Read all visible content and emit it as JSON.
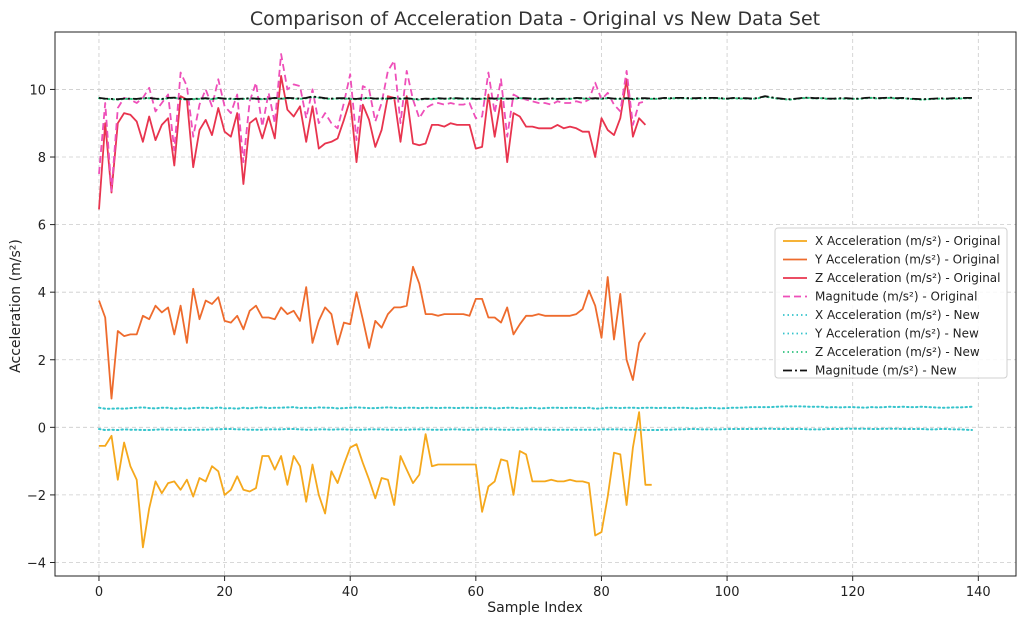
{
  "chart_data": {
    "type": "line",
    "title": "Comparison of Acceleration Data - Original vs New Data Set",
    "xlabel": "Sample Index",
    "ylabel": "Acceleration (m/s²)",
    "xlim": [
      -7,
      146
    ],
    "ylim": [
      -4.4,
      11.7
    ],
    "xticks": [
      0,
      20,
      40,
      60,
      80,
      100,
      120,
      140
    ],
    "yticks": [
      -4,
      -2,
      0,
      2,
      4,
      6,
      8,
      10
    ],
    "grid": true,
    "legend_position": "center-right",
    "series": [
      {
        "name": "X Acceleration (m/s²) - Original",
        "color": "#f5a81c",
        "style": "solid",
        "x_start": 0,
        "values": [
          -0.55,
          -0.55,
          -0.25,
          -1.55,
          -0.45,
          -1.15,
          -1.55,
          -3.55,
          -2.4,
          -1.6,
          -1.95,
          -1.65,
          -1.6,
          -1.85,
          -1.55,
          -2.05,
          -1.5,
          -1.6,
          -1.15,
          -1.3,
          -2.0,
          -1.85,
          -1.45,
          -1.85,
          -1.9,
          -1.8,
          -0.85,
          -0.85,
          -1.25,
          -0.85,
          -1.7,
          -0.85,
          -1.15,
          -2.2,
          -1.1,
          -2.0,
          -2.55,
          -1.3,
          -1.65,
          -1.1,
          -0.6,
          -0.5,
          -1.05,
          -1.55,
          -2.1,
          -1.5,
          -1.55,
          -2.3,
          -0.85,
          -1.25,
          -1.65,
          -1.4,
          -0.2,
          -1.15,
          -1.1,
          -1.1,
          -1.1,
          -1.1,
          -1.1,
          -1.1,
          -1.1,
          -2.5,
          -1.75,
          -1.6,
          -0.95,
          -1.0,
          -2.0,
          -0.7,
          -0.8,
          -1.6,
          -1.6,
          -1.6,
          -1.55,
          -1.6,
          -1.6,
          -1.55,
          -1.6,
          -1.6,
          -1.65,
          -3.2,
          -3.1,
          -2.05,
          -0.75,
          -0.8,
          -2.3,
          -0.6,
          0.45,
          -1.7,
          -1.7
        ]
      },
      {
        "name": "Y Acceleration (m/s²) - Original",
        "color": "#ee6b2d",
        "style": "solid",
        "x_start": 0,
        "values": [
          3.75,
          3.25,
          0.85,
          2.85,
          2.7,
          2.75,
          2.75,
          3.3,
          3.2,
          3.6,
          3.4,
          3.55,
          2.75,
          3.6,
          2.5,
          4.1,
          3.2,
          3.75,
          3.65,
          3.85,
          3.15,
          3.1,
          3.3,
          2.9,
          3.45,
          3.6,
          3.25,
          3.25,
          3.2,
          3.55,
          3.35,
          3.45,
          3.15,
          4.15,
          2.5,
          3.15,
          3.55,
          3.35,
          2.45,
          3.1,
          3.05,
          4.0,
          3.2,
          2.35,
          3.15,
          2.95,
          3.35,
          3.55,
          3.55,
          3.6,
          4.75,
          4.25,
          3.35,
          3.35,
          3.3,
          3.35,
          3.35,
          3.35,
          3.35,
          3.3,
          3.8,
          3.8,
          3.25,
          3.25,
          3.1,
          3.55,
          2.75,
          3.05,
          3.3,
          3.3,
          3.35,
          3.3,
          3.3,
          3.3,
          3.3,
          3.3,
          3.35,
          3.5,
          4.05,
          3.6,
          2.65,
          4.45,
          2.6,
          3.95,
          2.0,
          1.4,
          2.5,
          2.8
        ]
      },
      {
        "name": "Z Acceleration (m/s²) - Original",
        "color": "#e8344e",
        "style": "solid",
        "x_start": 0,
        "values": [
          6.45,
          9.0,
          6.95,
          9.0,
          9.3,
          9.25,
          9.05,
          8.45,
          9.2,
          8.5,
          8.95,
          9.15,
          7.75,
          9.8,
          9.7,
          7.7,
          8.8,
          9.1,
          8.65,
          9.45,
          8.75,
          8.6,
          9.3,
          7.2,
          9.0,
          9.15,
          8.55,
          9.2,
          8.55,
          10.4,
          9.4,
          9.2,
          9.5,
          8.45,
          9.5,
          8.25,
          8.4,
          8.45,
          8.55,
          9.1,
          9.7,
          7.85,
          9.55,
          9.1,
          8.3,
          8.8,
          9.8,
          9.75,
          8.45,
          9.8,
          8.4,
          8.35,
          8.4,
          8.95,
          8.95,
          8.9,
          9.0,
          8.95,
          8.95,
          8.95,
          8.25,
          8.3,
          9.85,
          8.6,
          9.7,
          7.85,
          9.3,
          9.2,
          8.9,
          8.9,
          8.85,
          8.85,
          8.85,
          8.95,
          8.85,
          8.9,
          8.85,
          8.75,
          8.75,
          8.0,
          9.15,
          8.8,
          8.65,
          9.15,
          10.3,
          8.6,
          9.15,
          8.95
        ]
      },
      {
        "name": "Magnitude (m/s²) - Original",
        "color": "#ee4fb9",
        "style": "dashed",
        "x_start": 0,
        "values": [
          7.5,
          9.6,
          7.0,
          9.45,
          9.75,
          9.7,
          9.6,
          9.75,
          10.05,
          9.35,
          9.6,
          9.85,
          8.2,
          10.5,
          10.1,
          8.6,
          9.55,
          10.0,
          9.5,
          10.3,
          9.5,
          9.3,
          9.85,
          7.85,
          9.65,
          10.2,
          8.9,
          9.9,
          9.0,
          11.05,
          10.0,
          10.15,
          10.1,
          9.15,
          10.0,
          9.0,
          9.3,
          9.0,
          8.85,
          9.6,
          10.45,
          8.5,
          10.1,
          10.0,
          9.05,
          9.6,
          10.55,
          10.85,
          9.0,
          10.55,
          9.7,
          9.15,
          9.45,
          9.55,
          9.6,
          9.55,
          9.6,
          9.55,
          9.55,
          9.6,
          9.15,
          9.2,
          10.5,
          9.3,
          10.3,
          8.6,
          9.85,
          9.75,
          9.7,
          9.65,
          9.6,
          9.6,
          9.55,
          9.65,
          9.6,
          9.6,
          9.65,
          9.6,
          9.7,
          10.2,
          9.7,
          9.9,
          9.55,
          9.35,
          10.55,
          8.95,
          9.6,
          9.65
        ]
      },
      {
        "name": "X Acceleration (m/s²) - New",
        "color": "#36c4cc",
        "style": "dotted",
        "x_start": 0,
        "values": [
          0.58,
          0.55,
          0.55,
          0.56,
          0.55,
          0.57,
          0.58,
          0.59,
          0.57,
          0.56,
          0.58,
          0.58,
          0.55,
          0.57,
          0.55,
          0.57,
          0.58,
          0.58,
          0.56,
          0.59,
          0.56,
          0.57,
          0.55,
          0.58,
          0.56,
          0.58,
          0.59,
          0.57,
          0.58,
          0.58,
          0.59,
          0.6,
          0.57,
          0.58,
          0.57,
          0.59,
          0.58,
          0.58,
          0.56,
          0.57,
          0.58,
          0.59,
          0.58,
          0.57,
          0.57,
          0.58,
          0.59,
          0.58,
          0.57,
          0.58,
          0.58,
          0.57,
          0.58,
          0.58,
          0.57,
          0.58,
          0.58,
          0.57,
          0.58,
          0.58,
          0.57,
          0.58,
          0.58,
          0.56,
          0.57,
          0.58,
          0.58,
          0.56,
          0.57,
          0.58,
          0.56,
          0.57,
          0.58,
          0.58,
          0.57,
          0.58,
          0.58,
          0.57,
          0.58,
          0.55,
          0.56,
          0.58,
          0.58,
          0.57,
          0.58,
          0.58,
          0.57,
          0.58,
          0.58,
          0.57,
          0.58,
          0.57,
          0.58,
          0.58,
          0.57,
          0.56,
          0.57,
          0.58,
          0.57,
          0.56,
          0.57,
          0.58,
          0.58,
          0.59,
          0.6,
          0.6,
          0.6,
          0.6,
          0.61,
          0.62,
          0.62,
          0.62,
          0.62,
          0.61,
          0.61,
          0.61,
          0.59,
          0.6,
          0.59,
          0.6,
          0.6,
          0.59,
          0.58,
          0.6,
          0.59,
          0.6,
          0.61,
          0.6,
          0.61,
          0.6,
          0.6,
          0.61,
          0.6,
          0.59,
          0.58,
          0.58,
          0.59,
          0.59,
          0.6,
          0.61
        ]
      },
      {
        "name": "Y Acceleration (m/s²) - New",
        "color": "#36c4cc",
        "style": "dotted",
        "x_start": 0,
        "values": [
          -0.05,
          -0.08,
          -0.07,
          -0.08,
          -0.06,
          -0.07,
          -0.07,
          -0.08,
          -0.08,
          -0.07,
          -0.06,
          -0.07,
          -0.07,
          -0.07,
          -0.08,
          -0.07,
          -0.07,
          -0.07,
          -0.06,
          -0.06,
          -0.05,
          -0.05,
          -0.06,
          -0.06,
          -0.07,
          -0.07,
          -0.07,
          -0.06,
          -0.06,
          -0.06,
          -0.05,
          -0.05,
          -0.06,
          -0.07,
          -0.07,
          -0.06,
          -0.06,
          -0.07,
          -0.06,
          -0.06,
          -0.07,
          -0.07,
          -0.07,
          -0.06,
          -0.06,
          -0.06,
          -0.07,
          -0.07,
          -0.07,
          -0.07,
          -0.06,
          -0.06,
          -0.06,
          -0.07,
          -0.07,
          -0.07,
          -0.06,
          -0.06,
          -0.07,
          -0.07,
          -0.07,
          -0.06,
          -0.06,
          -0.06,
          -0.07,
          -0.07,
          -0.07,
          -0.07,
          -0.06,
          -0.06,
          -0.06,
          -0.07,
          -0.07,
          -0.07,
          -0.07,
          -0.07,
          -0.07,
          -0.07,
          -0.07,
          -0.07,
          -0.06,
          -0.06,
          -0.06,
          -0.06,
          -0.07,
          -0.07,
          -0.07,
          -0.08,
          -0.08,
          -0.08,
          -0.07,
          -0.07,
          -0.06,
          -0.06,
          -0.05,
          -0.05,
          -0.06,
          -0.06,
          -0.06,
          -0.06,
          -0.05,
          -0.05,
          -0.05,
          -0.05,
          -0.05,
          -0.05,
          -0.04,
          -0.04,
          -0.05,
          -0.05,
          -0.05,
          -0.05,
          -0.05,
          -0.06,
          -0.06,
          -0.06,
          -0.05,
          -0.05,
          -0.05,
          -0.04,
          -0.04,
          -0.04,
          -0.04,
          -0.05,
          -0.05,
          -0.04,
          -0.04,
          -0.04,
          -0.05,
          -0.05,
          -0.05,
          -0.05,
          -0.06,
          -0.06,
          -0.05,
          -0.05,
          -0.06,
          -0.06,
          -0.07,
          -0.08
        ]
      },
      {
        "name": "Z Acceleration (m/s²) - New",
        "color": "#2ec27e",
        "style": "dotted",
        "x_start": 0,
        "values": [
          9.74,
          9.72,
          9.71,
          9.7,
          9.72,
          9.72,
          9.71,
          9.73,
          9.74,
          9.72,
          9.71,
          9.74,
          9.75,
          9.72,
          9.7,
          9.71,
          9.72,
          9.73,
          9.71,
          9.74,
          9.72,
          9.72,
          9.71,
          9.72,
          9.73,
          9.72,
          9.71,
          9.72,
          9.74,
          9.72,
          9.74,
          9.73,
          9.72,
          9.74,
          9.78,
          9.76,
          9.73,
          9.72,
          9.73,
          9.73,
          9.72,
          9.71,
          9.73,
          9.74,
          9.72,
          9.73,
          9.72,
          9.74,
          9.72,
          9.73,
          9.71,
          9.7,
          9.72,
          9.71,
          9.73,
          9.72,
          9.73,
          9.73,
          9.72,
          9.73,
          9.71,
          9.72,
          9.73,
          9.72,
          9.73,
          9.72,
          9.72,
          9.74,
          9.73,
          9.72,
          9.71,
          9.72,
          9.73,
          9.71,
          9.72,
          9.72,
          9.74,
          9.73,
          9.72,
          9.73,
          9.72,
          9.74,
          9.72,
          9.72,
          9.73,
          9.71,
          9.73,
          9.73,
          9.72,
          9.72,
          9.74,
          9.73,
          9.74,
          9.74,
          9.73,
          9.73,
          9.74,
          9.74,
          9.74,
          9.73,
          9.72,
          9.74,
          9.73,
          9.73,
          9.72,
          9.74,
          9.79,
          9.76,
          9.73,
          9.71,
          9.7,
          9.72,
          9.74,
          9.75,
          9.73,
          9.74,
          9.72,
          9.72,
          9.73,
          9.73,
          9.72,
          9.72,
          9.74,
          9.75,
          9.73,
          9.74,
          9.75,
          9.73,
          9.74,
          9.72,
          9.71,
          9.7,
          9.71,
          9.72,
          9.73,
          9.72,
          9.73,
          9.73,
          9.74,
          9.74
        ]
      },
      {
        "name": "Magnitude (m/s²) - New",
        "color": "#111111",
        "style": "dashdot",
        "x_start": 0,
        "values": [
          9.75,
          9.73,
          9.72,
          9.71,
          9.73,
          9.73,
          9.72,
          9.74,
          9.75,
          9.73,
          9.72,
          9.75,
          9.76,
          9.73,
          9.71,
          9.72,
          9.73,
          9.74,
          9.72,
          9.75,
          9.73,
          9.73,
          9.72,
          9.73,
          9.74,
          9.73,
          9.72,
          9.73,
          9.75,
          9.73,
          9.75,
          9.74,
          9.73,
          9.75,
          9.79,
          9.77,
          9.74,
          9.73,
          9.74,
          9.74,
          9.73,
          9.72,
          9.74,
          9.75,
          9.73,
          9.74,
          9.73,
          9.75,
          9.73,
          9.74,
          9.72,
          9.71,
          9.73,
          9.72,
          9.74,
          9.73,
          9.74,
          9.74,
          9.73,
          9.74,
          9.72,
          9.73,
          9.74,
          9.73,
          9.74,
          9.73,
          9.73,
          9.75,
          9.74,
          9.73,
          9.72,
          9.73,
          9.74,
          9.72,
          9.73,
          9.73,
          9.75,
          9.74,
          9.73,
          9.74,
          9.73,
          9.75,
          9.73,
          9.73,
          9.74,
          9.72,
          9.74,
          9.74,
          9.73,
          9.73,
          9.75,
          9.74,
          9.75,
          9.75,
          9.74,
          9.74,
          9.75,
          9.75,
          9.75,
          9.74,
          9.73,
          9.75,
          9.74,
          9.74,
          9.73,
          9.75,
          9.8,
          9.77,
          9.74,
          9.72,
          9.71,
          9.73,
          9.75,
          9.76,
          9.74,
          9.75,
          9.73,
          9.73,
          9.74,
          9.74,
          9.73,
          9.73,
          9.75,
          9.76,
          9.74,
          9.75,
          9.76,
          9.74,
          9.75,
          9.73,
          9.72,
          9.71,
          9.72,
          9.73,
          9.74,
          9.73,
          9.74,
          9.74,
          9.75,
          9.75
        ]
      }
    ]
  }
}
